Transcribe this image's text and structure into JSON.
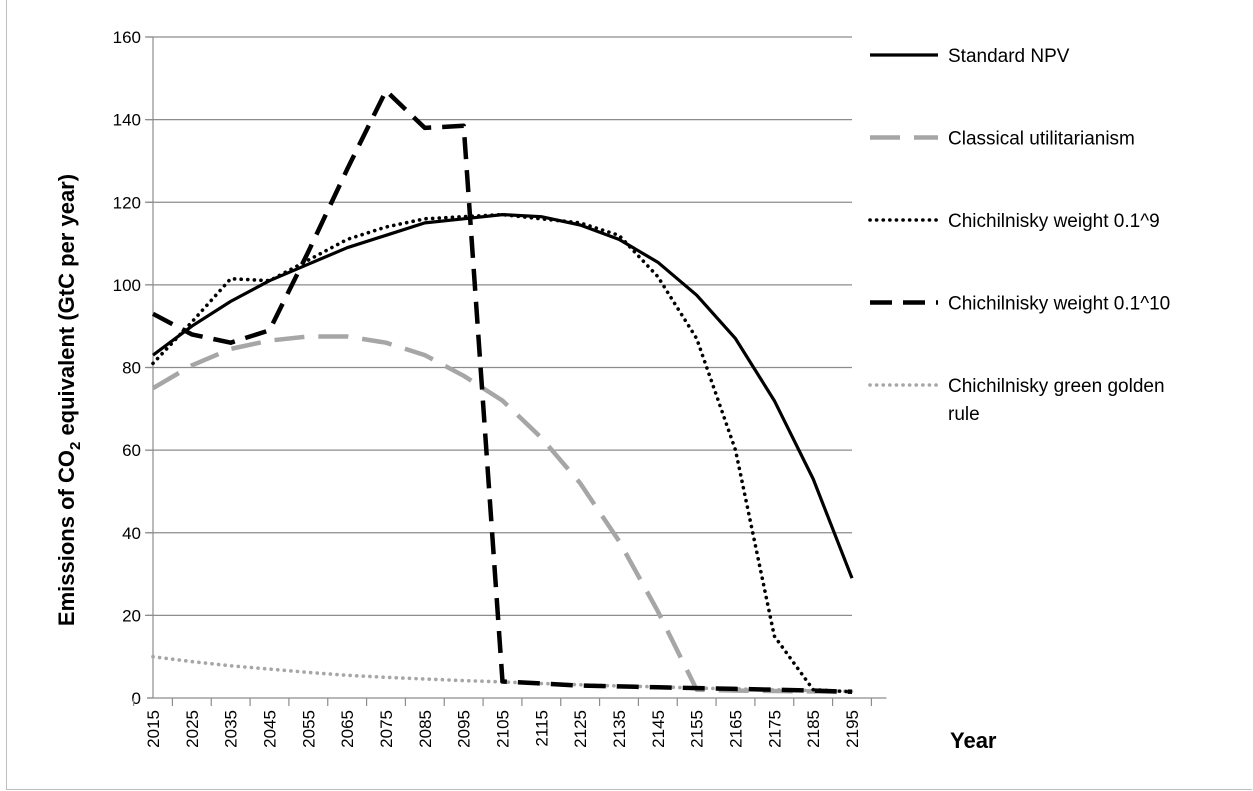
{
  "chart_data": {
    "type": "line",
    "xlabel": "Year",
    "ylabel_main": "Emissions of CO",
    "ylabel_sub": "2",
    "ylabel_rest": " equivalent  (GtC per year)",
    "ylim": [
      0,
      160
    ],
    "yticks": [
      "0",
      "20",
      "40",
      "60",
      "80",
      "100",
      "120",
      "140",
      "160"
    ],
    "x": [
      2015,
      2025,
      2035,
      2045,
      2055,
      2065,
      2075,
      2085,
      2095,
      2105,
      2115,
      2125,
      2135,
      2145,
      2155,
      2165,
      2175,
      2185,
      2195
    ],
    "x_tick_labels": [
      "2015",
      "2025",
      "2035",
      "2045",
      "2055",
      "2065",
      "2075",
      "2085",
      "2095",
      "2105",
      "2115",
      "2125",
      "2135",
      "2145",
      "2155",
      "2165",
      "2175",
      "2185",
      "2195"
    ],
    "grid": true,
    "legend_position": "right",
    "series": [
      {
        "name": "Standard NPV",
        "style": "solid",
        "color": "#000000",
        "values": [
          83,
          90,
          96,
          101,
          105,
          109,
          112,
          115,
          116,
          117,
          116.5,
          114.5,
          111,
          105.5,
          97.5,
          87,
          72,
          53,
          29
        ]
      },
      {
        "name": "Classical utilitarianism",
        "style": "longdash",
        "color": "#a6a6a6",
        "values": [
          75,
          80.5,
          84.5,
          86.5,
          87.5,
          87.5,
          86,
          83,
          78,
          72,
          63,
          52,
          38,
          21,
          2,
          1.8,
          1.7,
          1.6,
          1.5
        ]
      },
      {
        "name": "Chichilnisky weight 0.1^9",
        "style": "dotted",
        "color": "#000000",
        "values": [
          81,
          91,
          101.5,
          101,
          106,
          111,
          114,
          116,
          116.5,
          117,
          116,
          115,
          112,
          102,
          87,
          60,
          15,
          2,
          1.5
        ]
      },
      {
        "name": "Chichilnisky weight 0.1^10",
        "style": "dashed",
        "color": "#000000",
        "values": [
          93,
          88,
          86,
          89,
          108,
          128,
          147,
          138,
          138.5,
          4,
          3.5,
          3,
          2.8,
          2.6,
          2.4,
          2.2,
          2,
          1.8,
          1.5
        ]
      },
      {
        "name": "Chichilnisky green golden rule",
        "style": "dotted",
        "color": "#a6a6a6",
        "values": [
          10,
          8.8,
          7.8,
          7,
          6.2,
          5.5,
          5,
          4.6,
          4.2,
          3.9,
          3.5,
          3.2,
          2.9,
          2.7,
          2.4,
          2.2,
          2,
          1.8,
          1.6
        ]
      }
    ],
    "legend": {
      "line1": [
        "Standard NPV",
        "Classical utilitarianism",
        "Chichilnisky weight 0.1^9",
        "Chichilnisky weight 0.1^10",
        "Chichilnisky green golden"
      ],
      "line2_last": "rule"
    }
  }
}
